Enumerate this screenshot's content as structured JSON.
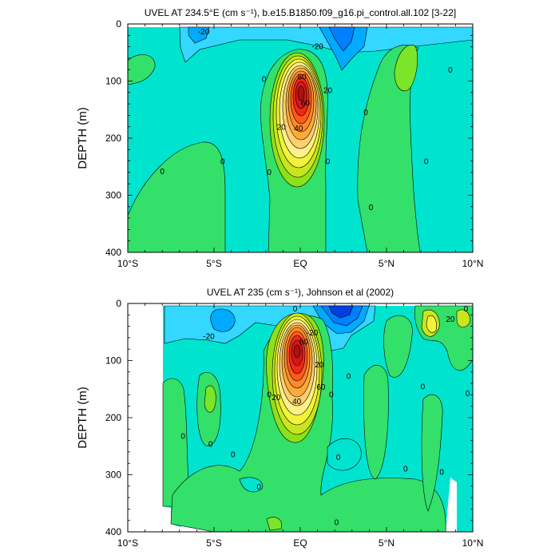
{
  "chart_data": [
    {
      "type": "contour",
      "title": "UVEL AT 234.5°E (cm s⁻¹), b.e15.B1850.f09_g16.pi_control.all.102 [3-22]",
      "ylabel": "DEPTH (m)",
      "xlabel": "",
      "xlim": [
        -10,
        10
      ],
      "ylim": [
        0,
        400
      ],
      "y_inverted": true,
      "x_ticks": [
        {
          "v": -10,
          "label": "10°S"
        },
        {
          "v": -5,
          "label": "5°S"
        },
        {
          "v": 0,
          "label": "EQ"
        },
        {
          "v": 5,
          "label": "5°N"
        },
        {
          "v": 10,
          "label": "10°N"
        }
      ],
      "y_ticks": [
        0,
        100,
        200,
        300,
        400
      ],
      "contour_interval": 10,
      "contour_labels": [
        {
          "x": -5.6,
          "y": 14,
          "text": "-20"
        },
        {
          "x": 1.0,
          "y": 40,
          "text": "-20"
        },
        {
          "x": -2.1,
          "y": 97,
          "text": "0"
        },
        {
          "x": 0.1,
          "y": 93,
          "text": "80"
        },
        {
          "x": 0.3,
          "y": 139,
          "text": "60"
        },
        {
          "x": 1.6,
          "y": 117,
          "text": "20"
        },
        {
          "x": -1.1,
          "y": 181,
          "text": "20"
        },
        {
          "x": -0.1,
          "y": 183,
          "text": "40"
        },
        {
          "x": -8.0,
          "y": 259,
          "text": "0"
        },
        {
          "x": -4.5,
          "y": 241,
          "text": "0"
        },
        {
          "x": -1.8,
          "y": 260,
          "text": "0"
        },
        {
          "x": 1.6,
          "y": 241,
          "text": "0"
        },
        {
          "x": 3.8,
          "y": 155,
          "text": "0"
        },
        {
          "x": 4.1,
          "y": 322,
          "text": "0"
        },
        {
          "x": 7.3,
          "y": 241,
          "text": "0"
        },
        {
          "x": 8.7,
          "y": 81,
          "text": "0"
        }
      ]
    },
    {
      "type": "contour",
      "title": "UVEL AT 235 (cm s⁻¹), Johnson et al (2002)",
      "ylabel": "DEPTH (m)",
      "xlabel": "",
      "xlim": [
        -10,
        10
      ],
      "ylim": [
        0,
        400
      ],
      "y_inverted": true,
      "x_ticks": [
        {
          "v": -10,
          "label": "10°S"
        },
        {
          "v": -5,
          "label": "5°S"
        },
        {
          "v": 0,
          "label": "EQ"
        },
        {
          "v": 5,
          "label": "5°N"
        },
        {
          "v": 10,
          "label": "10°N"
        }
      ],
      "y_ticks": [
        0,
        100,
        200,
        300,
        400
      ],
      "contour_interval": 10,
      "contour_labels": [
        {
          "x": -5.3,
          "y": 58,
          "text": "-20"
        },
        {
          "x": -0.3,
          "y": 10,
          "text": "0"
        },
        {
          "x": 0.7,
          "y": 52,
          "text": "-20"
        },
        {
          "x": 0.2,
          "y": 68,
          "text": "80"
        },
        {
          "x": 1.1,
          "y": 108,
          "text": "20"
        },
        {
          "x": 1.2,
          "y": 147,
          "text": "60"
        },
        {
          "x": -1.4,
          "y": 165,
          "text": "20"
        },
        {
          "x": -0.2,
          "y": 172,
          "text": "40"
        },
        {
          "x": -6.8,
          "y": 233,
          "text": "0"
        },
        {
          "x": -5.2,
          "y": 247,
          "text": "0"
        },
        {
          "x": -3.9,
          "y": 265,
          "text": "0"
        },
        {
          "x": -2.4,
          "y": 322,
          "text": "0"
        },
        {
          "x": -1.8,
          "y": 160,
          "text": "0"
        },
        {
          "x": 1.8,
          "y": 160,
          "text": "0"
        },
        {
          "x": 2.8,
          "y": 128,
          "text": "0"
        },
        {
          "x": 2.2,
          "y": 270,
          "text": "0"
        },
        {
          "x": 6.1,
          "y": 290,
          "text": "0"
        },
        {
          "x": 7.1,
          "y": 146,
          "text": "0"
        },
        {
          "x": 8.2,
          "y": 296,
          "text": "0"
        },
        {
          "x": 8.7,
          "y": 28,
          "text": "20"
        },
        {
          "x": 9.6,
          "y": 10,
          "text": "0"
        },
        {
          "x": 9.7,
          "y": 158,
          "text": "0"
        },
        {
          "x": 2.1,
          "y": 384,
          "text": "0"
        }
      ]
    }
  ]
}
